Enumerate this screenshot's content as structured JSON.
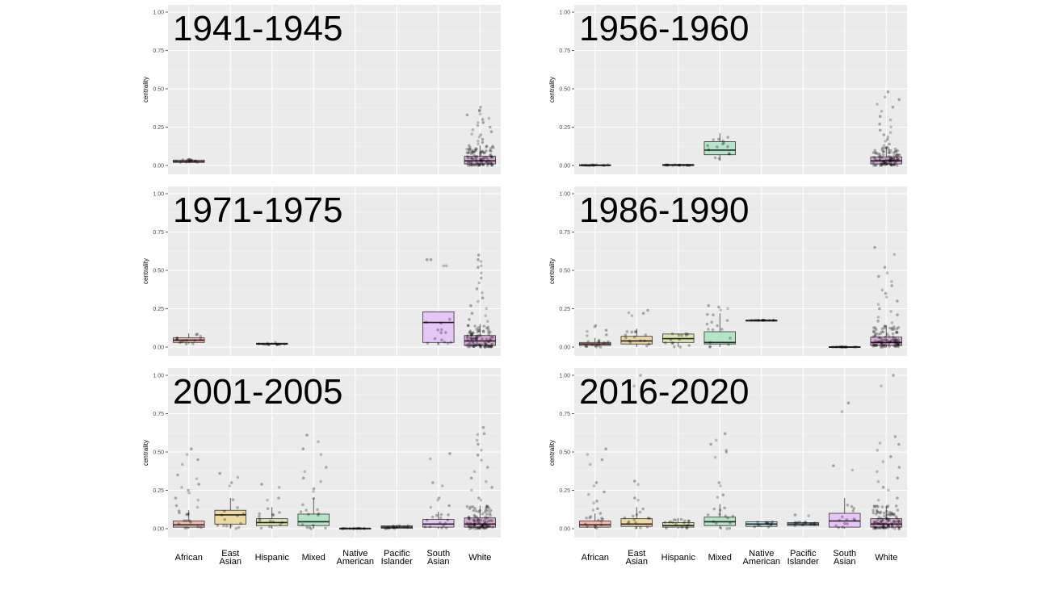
{
  "figure": {
    "categories": [
      "African",
      "East Asian",
      "Hispanic",
      "Mixed",
      "Native American",
      "Pacific Islander",
      "South Asian",
      "White"
    ],
    "category_colors": [
      "#F4B8B0",
      "#EFD9A3",
      "#DCE7B0",
      "#B4E5C6",
      "#B9E4EE",
      "#BFD9F2",
      "#E6C6F5",
      "#D9A9D6"
    ],
    "y_ticks": [
      "0.00",
      "0.25",
      "0.50",
      "0.75",
      "1.00"
    ],
    "ylabel": "centrality"
  },
  "chart_data": [
    {
      "type": "box",
      "title": "1941-1945",
      "ylabel": "centrality",
      "ylim": [
        0,
        1
      ],
      "categories": [
        "African",
        "East Asian",
        "Hispanic",
        "Mixed",
        "Native American",
        "Pacific Islander",
        "South Asian",
        "White"
      ],
      "boxes": [
        {
          "category": "African",
          "min": 0.02,
          "q1": 0.02,
          "median": 0.025,
          "q3": 0.035,
          "max": 0.04,
          "outliers": []
        },
        {
          "category": "White",
          "min": 0.0,
          "q1": 0.01,
          "median": 0.03,
          "q3": 0.06,
          "max": 0.13,
          "outliers": [
            0.15,
            0.17,
            0.2,
            0.22,
            0.25,
            0.28,
            0.3,
            0.33,
            0.36,
            0.38
          ]
        }
      ]
    },
    {
      "type": "box",
      "title": "1956-1960",
      "ylabel": "centrality",
      "ylim": [
        0,
        1
      ],
      "categories": [
        "African",
        "East Asian",
        "Hispanic",
        "Mixed",
        "Native American",
        "Pacific Islander",
        "South Asian",
        "White"
      ],
      "boxes": [
        {
          "category": "African",
          "min": 0.0,
          "q1": 0.0,
          "median": 0.0,
          "q3": 0.005,
          "max": 0.005,
          "outliers": []
        },
        {
          "category": "Hispanic",
          "min": 0.0,
          "q1": 0.0,
          "median": 0.005,
          "q3": 0.005,
          "max": 0.005,
          "outliers": []
        },
        {
          "category": "Mixed",
          "min": 0.03,
          "q1": 0.07,
          "median": 0.1,
          "q3": 0.155,
          "max": 0.21,
          "outliers": []
        },
        {
          "category": "White",
          "min": 0.0,
          "q1": 0.01,
          "median": 0.03,
          "q3": 0.055,
          "max": 0.12,
          "outliers": [
            0.14,
            0.17,
            0.2,
            0.23,
            0.27,
            0.32,
            0.38,
            0.43,
            0.48
          ]
        }
      ]
    },
    {
      "type": "box",
      "title": "1971-1975",
      "ylabel": "centrality",
      "ylim": [
        0,
        1
      ],
      "categories": [
        "African",
        "East Asian",
        "Hispanic",
        "Mixed",
        "Native American",
        "Pacific Islander",
        "South Asian",
        "White"
      ],
      "boxes": [
        {
          "category": "African",
          "min": 0.02,
          "q1": 0.03,
          "median": 0.045,
          "q3": 0.06,
          "max": 0.09,
          "outliers": []
        },
        {
          "category": "Hispanic",
          "min": 0.015,
          "q1": 0.018,
          "median": 0.02,
          "q3": 0.025,
          "max": 0.03,
          "outliers": []
        },
        {
          "category": "South Asian",
          "min": 0.02,
          "q1": 0.03,
          "median": 0.16,
          "q3": 0.23,
          "max": 0.23,
          "outliers": [
            0.57,
            0.57
          ]
        },
        {
          "category": "White",
          "min": 0.0,
          "q1": 0.01,
          "median": 0.04,
          "q3": 0.075,
          "max": 0.15,
          "outliers": [
            0.18,
            0.22,
            0.27,
            0.32,
            0.38,
            0.45,
            0.52,
            0.57,
            0.6
          ]
        }
      ]
    },
    {
      "type": "box",
      "title": "1986-1990",
      "ylabel": "centrality",
      "ylim": [
        0,
        1
      ],
      "categories": [
        "African",
        "East Asian",
        "Hispanic",
        "Mixed",
        "Native American",
        "Pacific Islander",
        "South Asian",
        "White"
      ],
      "boxes": [
        {
          "category": "African",
          "min": 0.0,
          "q1": 0.01,
          "median": 0.02,
          "q3": 0.03,
          "max": 0.06,
          "outliers": [
            0.08,
            0.11,
            0.14
          ]
        },
        {
          "category": "East Asian",
          "min": 0.0,
          "q1": 0.02,
          "median": 0.04,
          "q3": 0.07,
          "max": 0.12,
          "outliers": [
            0.22,
            0.24
          ]
        },
        {
          "category": "Hispanic",
          "min": 0.0,
          "q1": 0.03,
          "median": 0.055,
          "q3": 0.085,
          "max": 0.09,
          "outliers": []
        },
        {
          "category": "Mixed",
          "min": 0.0,
          "q1": 0.02,
          "median": 0.03,
          "q3": 0.1,
          "max": 0.22,
          "outliers": [
            0.26,
            0.27
          ]
        },
        {
          "category": "Native American",
          "min": 0.175,
          "q1": 0.175,
          "median": 0.175,
          "q3": 0.175,
          "max": 0.175,
          "outliers": []
        },
        {
          "category": "South Asian",
          "min": 0.0,
          "q1": 0.0,
          "median": 0.0,
          "q3": 0.003,
          "max": 0.003,
          "outliers": []
        },
        {
          "category": "White",
          "min": 0.0,
          "q1": 0.01,
          "median": 0.03,
          "q3": 0.065,
          "max": 0.14,
          "outliers": [
            0.17,
            0.21,
            0.25,
            0.3,
            0.35,
            0.4,
            0.46,
            0.52,
            0.65
          ]
        }
      ]
    },
    {
      "type": "box",
      "title": "2001-2005",
      "ylabel": "centrality",
      "ylim": [
        0,
        1
      ],
      "categories": [
        "African",
        "East Asian",
        "Hispanic",
        "Mixed",
        "Native American",
        "Pacific Islander",
        "South Asian",
        "White"
      ],
      "boxes": [
        {
          "category": "African",
          "min": 0.0,
          "q1": 0.01,
          "median": 0.025,
          "q3": 0.05,
          "max": 0.12,
          "outliers": [
            0.15,
            0.2,
            0.25,
            0.29,
            0.35,
            0.45,
            0.52
          ]
        },
        {
          "category": "East Asian",
          "min": 0.0,
          "q1": 0.03,
          "median": 0.09,
          "q3": 0.12,
          "max": 0.2,
          "outliers": [
            0.3,
            0.36
          ]
        },
        {
          "category": "Hispanic",
          "min": 0.0,
          "q1": 0.02,
          "median": 0.04,
          "q3": 0.065,
          "max": 0.14,
          "outliers": [
            0.2,
            0.29
          ]
        },
        {
          "category": "Mixed",
          "min": 0.0,
          "q1": 0.02,
          "median": 0.045,
          "q3": 0.095,
          "max": 0.2,
          "outliers": [
            0.26,
            0.33,
            0.4,
            0.52,
            0.61
          ]
        },
        {
          "category": "Native American",
          "min": 0.0,
          "q1": 0.0,
          "median": 0.002,
          "q3": 0.003,
          "max": 0.003,
          "outliers": []
        },
        {
          "category": "Pacific Islander",
          "min": 0.0,
          "q1": 0.002,
          "median": 0.01,
          "q3": 0.018,
          "max": 0.025,
          "outliers": []
        },
        {
          "category": "South Asian",
          "min": 0.0,
          "q1": 0.01,
          "median": 0.03,
          "q3": 0.06,
          "max": 0.11,
          "outliers": [
            0.15,
            0.2,
            0.3,
            0.49
          ]
        },
        {
          "category": "White",
          "min": 0.0,
          "q1": 0.01,
          "median": 0.03,
          "q3": 0.07,
          "max": 0.15,
          "outliers": [
            0.2,
            0.27,
            0.33,
            0.4,
            0.48,
            0.55,
            0.62,
            0.66
          ]
        }
      ]
    },
    {
      "type": "box",
      "title": "2016-2020",
      "ylabel": "centrality",
      "ylim": [
        0,
        1
      ],
      "categories": [
        "African",
        "East Asian",
        "Hispanic",
        "Mixed",
        "Native American",
        "Pacific Islander",
        "South Asian",
        "White"
      ],
      "boxes": [
        {
          "category": "African",
          "min": 0.0,
          "q1": 0.01,
          "median": 0.025,
          "q3": 0.05,
          "max": 0.1,
          "outliers": [
            0.13,
            0.18,
            0.24,
            0.3,
            0.45,
            0.52
          ]
        },
        {
          "category": "East Asian",
          "min": 0.0,
          "q1": 0.015,
          "median": 0.03,
          "q3": 0.065,
          "max": 0.14,
          "outliers": [
            0.2,
            0.31,
            1.0
          ]
        },
        {
          "category": "Hispanic",
          "min": 0.0,
          "q1": 0.01,
          "median": 0.02,
          "q3": 0.04,
          "max": 0.07,
          "outliers": [
            0.05,
            0.06
          ]
        },
        {
          "category": "Mixed",
          "min": 0.0,
          "q1": 0.02,
          "median": 0.045,
          "q3": 0.075,
          "max": 0.16,
          "outliers": [
            0.22,
            0.3,
            0.5,
            0.55,
            0.62
          ]
        },
        {
          "category": "Native American",
          "min": 0.01,
          "q1": 0.015,
          "median": 0.03,
          "q3": 0.045,
          "max": 0.045,
          "outliers": []
        },
        {
          "category": "Pacific Islander",
          "min": 0.015,
          "q1": 0.02,
          "median": 0.03,
          "q3": 0.04,
          "max": 0.045,
          "outliers": [
            0.09
          ]
        },
        {
          "category": "South Asian",
          "min": 0.0,
          "q1": 0.01,
          "median": 0.05,
          "q3": 0.1,
          "max": 0.2,
          "outliers": [
            0.41,
            0.82
          ]
        },
        {
          "category": "White",
          "min": 0.0,
          "q1": 0.01,
          "median": 0.03,
          "q3": 0.065,
          "max": 0.15,
          "outliers": [
            0.2,
            0.27,
            0.33,
            0.4,
            0.47,
            0.55,
            0.6,
            1.0
          ]
        }
      ]
    }
  ]
}
